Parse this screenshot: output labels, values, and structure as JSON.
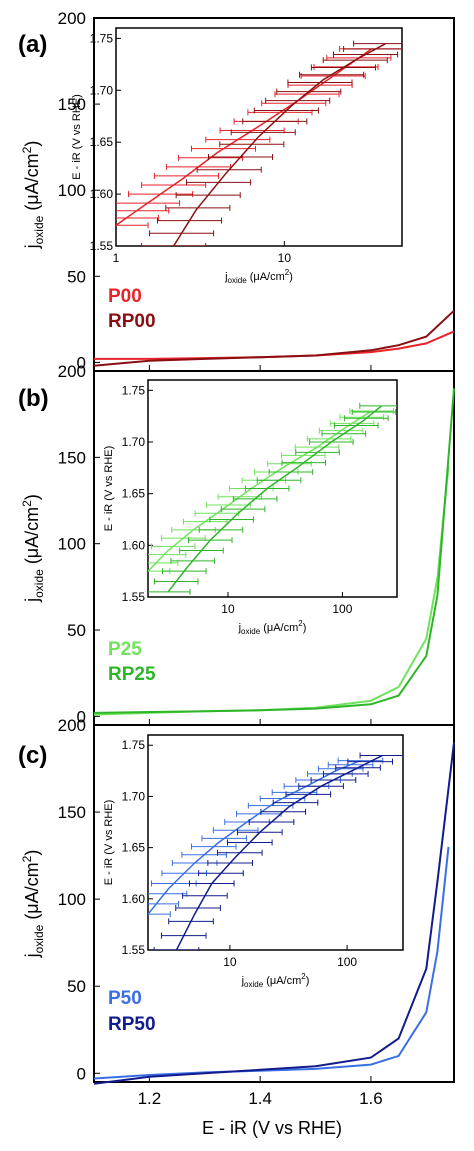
{
  "figure": {
    "xlabel": "E - iR (V vs RHE)",
    "ylabel_main": "j",
    "ylabel_sub": "oxide",
    "ylabel_unit": " (μA/cm",
    "ylabel_sup": "2",
    "ylabel_close": ")",
    "xticks": [
      "1.2",
      "1.4",
      "1.6"
    ],
    "yticks": [
      "0",
      "50",
      "100",
      "150",
      "200"
    ],
    "inset_ylabel": "E - iR (V vs RHE)",
    "inset_xlabel_main": "j",
    "inset_xlabel_sub": "oxide",
    "inset_xlabel_unit": " (μA/cm",
    "inset_xlabel_sup": "2",
    "inset_xlabel_close": ")",
    "inset_yticks": [
      "1.55",
      "1.60",
      "1.65",
      "1.70",
      "1.75"
    ]
  },
  "chart_data": [
    {
      "type": "line",
      "panel": "(a)",
      "xlabel": "E - iR (V vs RHE)",
      "ylabel": "j oxide (μA/cm2)",
      "xlim": [
        1.1,
        1.75
      ],
      "ylim": [
        -5,
        200
      ],
      "colors": {
        "P": "#e8232a",
        "RP": "#8b0f12"
      },
      "series": [
        {
          "name": "P00",
          "color": "#e8232a",
          "x": [
            1.1,
            1.2,
            1.3,
            1.4,
            1.5,
            1.6,
            1.65,
            1.7,
            1.75
          ],
          "y": [
            2,
            2,
            2.5,
            3,
            4,
            6,
            8,
            11,
            18
          ]
        },
        {
          "name": "RP00",
          "color": "#8b0f12",
          "x": [
            1.1,
            1.2,
            1.3,
            1.4,
            1.5,
            1.6,
            1.65,
            1.7,
            1.75
          ],
          "y": [
            -2,
            1,
            2,
            3,
            4,
            7,
            10,
            15,
            30
          ]
        }
      ],
      "inset": {
        "xscale": "log",
        "xlim": [
          1,
          50
        ],
        "ylim": [
          1.55,
          1.76
        ],
        "xticks": [
          "1",
          "10"
        ],
        "series": [
          {
            "name": "P00",
            "color": "#e8232a",
            "x": [
              1.0,
              1.5,
              2.5,
              4,
              7,
              12,
              20,
              33
            ],
            "y": [
              1.57,
              1.59,
              1.615,
              1.64,
              1.665,
              1.69,
              1.715,
              1.74
            ]
          },
          {
            "name": "RP00",
            "color": "#8b0f12",
            "x": [
              2.2,
              3,
              4.5,
              7,
              11,
              17,
              27,
              40
            ],
            "y": [
              1.55,
              1.585,
              1.62,
              1.655,
              1.685,
              1.71,
              1.73,
              1.745
            ]
          }
        ]
      }
    },
    {
      "type": "line",
      "panel": "(b)",
      "xlabel": "E - iR (V vs RHE)",
      "ylabel": "j oxide (μA/cm2)",
      "xlim": [
        1.1,
        1.75
      ],
      "ylim": [
        -5,
        200
      ],
      "colors": {
        "P": "#6fe35b",
        "RP": "#2fb52a"
      },
      "series": [
        {
          "name": "P25",
          "color": "#6fe35b",
          "x": [
            1.1,
            1.2,
            1.3,
            1.4,
            1.5,
            1.6,
            1.65,
            1.7,
            1.72,
            1.74
          ],
          "y": [
            1,
            2,
            3,
            3.5,
            5,
            9,
            17,
            45,
            80,
            145
          ]
        },
        {
          "name": "RP25",
          "color": "#2fb52a",
          "x": [
            1.1,
            1.2,
            1.3,
            1.4,
            1.5,
            1.6,
            1.65,
            1.7,
            1.72,
            1.75
          ],
          "y": [
            2,
            2.5,
            3,
            3.5,
            4.5,
            7,
            12,
            35,
            70,
            190
          ]
        }
      ],
      "inset": {
        "xscale": "log",
        "xlim": [
          2,
          300
        ],
        "ylim": [
          1.55,
          1.76
        ],
        "xticks": [
          "10",
          "100"
        ],
        "series": [
          {
            "name": "P25",
            "color": "#6fe35b",
            "x": [
              2,
              3,
              5,
              9,
              16,
              30,
              60,
              110,
              180
            ],
            "y": [
              1.575,
              1.595,
              1.615,
              1.635,
              1.655,
              1.675,
              1.695,
              1.715,
              1.73
            ]
          },
          {
            "name": "RP25",
            "color": "#2fb52a",
            "x": [
              3,
              4.5,
              7,
              12,
              22,
              40,
              80,
              150,
              220
            ],
            "y": [
              1.555,
              1.58,
              1.605,
              1.63,
              1.655,
              1.675,
              1.7,
              1.72,
              1.735
            ]
          }
        ]
      }
    },
    {
      "type": "line",
      "panel": "(c)",
      "xlabel": "E - iR (V vs RHE)",
      "ylabel": "j oxide (μA/cm2)",
      "xlim": [
        1.1,
        1.75
      ],
      "ylim": [
        -5,
        200
      ],
      "colors": {
        "P": "#3a6fe3",
        "RP": "#121c8c"
      },
      "series": [
        {
          "name": "P50",
          "color": "#3a6fe3",
          "x": [
            1.1,
            1.2,
            1.3,
            1.4,
            1.5,
            1.6,
            1.65,
            1.7,
            1.72,
            1.74
          ],
          "y": [
            -3,
            -1,
            0.5,
            1.5,
            2.5,
            5,
            10,
            35,
            70,
            130
          ]
        },
        {
          "name": "RP50",
          "color": "#121c8c",
          "x": [
            1.1,
            1.2,
            1.3,
            1.4,
            1.5,
            1.6,
            1.65,
            1.7,
            1.72,
            1.75
          ],
          "y": [
            -6,
            -2,
            0,
            2,
            4,
            9,
            20,
            60,
            110,
            190
          ]
        }
      ],
      "inset": {
        "xscale": "log",
        "xlim": [
          2,
          300
        ],
        "ylim": [
          1.55,
          1.76
        ],
        "xticks": [
          "10",
          "100"
        ],
        "series": [
          {
            "name": "P50",
            "color": "#3a6fe3",
            "x": [
              2,
              3,
              5,
              8,
              14,
              25,
              45,
              80,
              130
            ],
            "y": [
              1.585,
              1.61,
              1.635,
              1.655,
              1.675,
              1.695,
              1.71,
              1.725,
              1.735
            ]
          },
          {
            "name": "RP50",
            "color": "#121c8c",
            "x": [
              3.5,
              5,
              7,
              11,
              18,
              32,
              60,
              110,
              200
            ],
            "y": [
              1.55,
              1.585,
              1.615,
              1.64,
              1.665,
              1.69,
              1.71,
              1.725,
              1.74
            ]
          }
        ]
      }
    }
  ]
}
